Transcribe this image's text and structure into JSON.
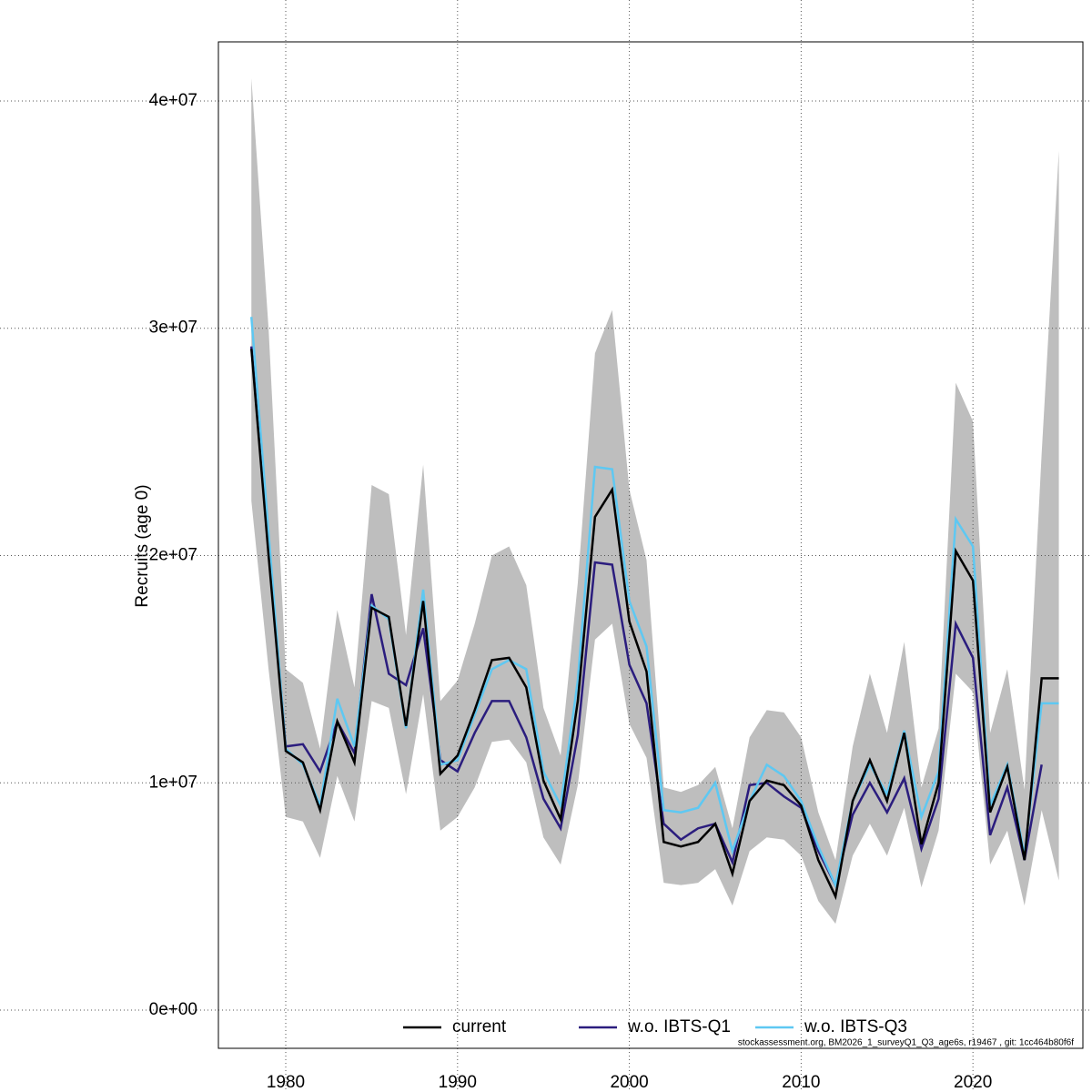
{
  "chart_data": {
    "type": "line",
    "ylabel": "Recruits (age 0)",
    "footer": "stockassessment.org, BM2026_1_surveyQ1_Q3_age6s, r19467 , git: 1cc464b80f6f",
    "x": [
      1978,
      1979,
      1980,
      1981,
      1982,
      1983,
      1984,
      1985,
      1986,
      1987,
      1988,
      1989,
      1990,
      1991,
      1992,
      1993,
      1994,
      1995,
      1996,
      1997,
      1998,
      1999,
      2000,
      2001,
      2002,
      2003,
      2004,
      2005,
      2006,
      2007,
      2008,
      2009,
      2010,
      2011,
      2012,
      2013,
      2014,
      2015,
      2016,
      2017,
      2018,
      2019,
      2020,
      2021,
      2022,
      2023,
      2024,
      2025
    ],
    "band": {
      "color": "#bebebe",
      "upper": [
        41000000.0,
        30000000.0,
        15000000.0,
        14400000.0,
        11500000.0,
        17600000.0,
        14200000.0,
        23100000.0,
        22700000.0,
        16500000.0,
        24000000.0,
        13600000.0,
        14500000.0,
        17000000.0,
        20000000.0,
        20400000.0,
        18700000.0,
        13300000.0,
        11200000.0,
        18800000.0,
        28900000.0,
        30800000.0,
        22900000.0,
        19800000.0,
        9800000.0,
        9600000.0,
        9900000.0,
        10700000.0,
        8000000.0,
        12000000.0,
        13200000.0,
        13100000.0,
        12000000.0,
        8700000.0,
        6600000.0,
        11600000.0,
        14800000.0,
        12200000.0,
        16200000.0,
        9800000.0,
        12400000.0,
        27600000.0,
        25900000.0,
        12200000.0,
        15000000.0,
        9700000.0,
        24500000.0,
        37800000.0
      ],
      "lower": [
        22400000.0,
        15000000.0,
        8500000.0,
        8300000.0,
        6700000.0,
        10300000.0,
        8300000.0,
        13600000.0,
        13300000.0,
        9500000.0,
        13900000.0,
        7900000.0,
        8500000.0,
        9800000.0,
        11800000.0,
        11900000.0,
        10900000.0,
        7600000.0,
        6400000.0,
        9900000.0,
        16300000.0,
        17000000.0,
        12600000.0,
        11100000.0,
        5600000.0,
        5500000.0,
        5600000.0,
        6200000.0,
        4600000.0,
        7000000.0,
        7600000.0,
        7500000.0,
        6800000.0,
        4800000.0,
        3800000.0,
        6800000.0,
        8200000.0,
        6800000.0,
        8900000.0,
        5400000.0,
        7900000.0,
        14800000.0,
        14000000.0,
        6400000.0,
        7900000.0,
        4600000.0,
        8800000.0,
        5700000.0
      ]
    },
    "series": [
      {
        "name": "w.o. IBTS-Q1",
        "color": "#2b1d7e",
        "linestyle": "solid",
        "values": [
          29200000.0,
          20500000.0,
          11600000.0,
          11700000.0,
          10500000.0,
          12700000.0,
          11300000.0,
          18300000.0,
          14800000.0,
          14300000.0,
          16800000.0,
          11000000.0,
          10500000.0,
          12200000.0,
          13600000.0,
          13600000.0,
          12000000.0,
          9300000.0,
          8000000.0,
          12100000.0,
          19700000.0,
          19600000.0,
          15200000.0,
          13500000.0,
          8200000.0,
          7500000.0,
          8000000.0,
          8200000.0,
          6500000.0,
          9900000.0,
          10000000.0,
          9400000.0,
          8900000.0,
          7000000.0,
          5500000.0,
          8600000.0,
          10000000.0,
          8700000.0,
          10200000.0,
          7100000.0,
          9300000.0,
          17000000.0,
          15500000.0,
          7700000.0,
          9800000.0,
          6600000.0,
          10800000.0,
          null
        ]
      },
      {
        "name": "w.o. IBTS-Q3",
        "color": "#5ec8f2",
        "linestyle": "solid",
        "values": [
          30500000.0,
          21000000.0,
          11500000.0,
          10800000.0,
          9000000.0,
          13700000.0,
          11600000.0,
          17800000.0,
          17200000.0,
          12400000.0,
          18500000.0,
          10800000.0,
          11000000.0,
          13000000.0,
          15000000.0,
          15400000.0,
          15000000.0,
          10500000.0,
          9000000.0,
          14500000.0,
          23900000.0,
          23800000.0,
          18000000.0,
          16000000.0,
          8800000.0,
          8700000.0,
          8900000.0,
          10000000.0,
          7000000.0,
          9200000.0,
          10800000.0,
          10300000.0,
          9200000.0,
          7200000.0,
          5500000.0,
          9200000.0,
          10800000.0,
          9500000.0,
          12300000.0,
          8500000.0,
          10500000.0,
          21600000.0,
          20400000.0,
          9000000.0,
          10800000.0,
          6800000.0,
          13500000.0,
          13500000.0
        ]
      },
      {
        "name": "current",
        "color": "#000000",
        "linestyle": "solid",
        "values": [
          29100000.0,
          20000000.0,
          11400000.0,
          10900000.0,
          8800000.0,
          12700000.0,
          10900000.0,
          17700000.0,
          17300000.0,
          12500000.0,
          18000000.0,
          10400000.0,
          11200000.0,
          13200000.0,
          15400000.0,
          15500000.0,
          14200000.0,
          10100000.0,
          8400000.0,
          13600000.0,
          21700000.0,
          22900000.0,
          17100000.0,
          14900000.0,
          7400000.0,
          7200000.0,
          7400000.0,
          8200000.0,
          6000000.0,
          9200000.0,
          10100000.0,
          9900000.0,
          9000000.0,
          6600000.0,
          5000000.0,
          9200000.0,
          11000000.0,
          9200000.0,
          12200000.0,
          7300000.0,
          10000000.0,
          20200000.0,
          18900000.0,
          8700000.0,
          10700000.0,
          6600000.0,
          14600000.0,
          14600000.0
        ]
      }
    ],
    "legend_order": [
      2,
      0,
      1
    ],
    "legend": "bottom",
    "xlim": [
      1976.08,
      2026.4
    ],
    "xticks": [
      1980,
      1990,
      2000,
      2010,
      2020
    ],
    "ylim": [
      -1680000,
      42600000
    ],
    "yticks": [
      {
        "value": 0,
        "label": "0e+00"
      },
      {
        "value": 10000000,
        "label": "1e+07"
      },
      {
        "value": 20000000,
        "label": "2e+07"
      },
      {
        "value": 30000000,
        "label": "3e+07"
      },
      {
        "value": 40000000,
        "label": "4e+07"
      }
    ],
    "grid": true
  }
}
